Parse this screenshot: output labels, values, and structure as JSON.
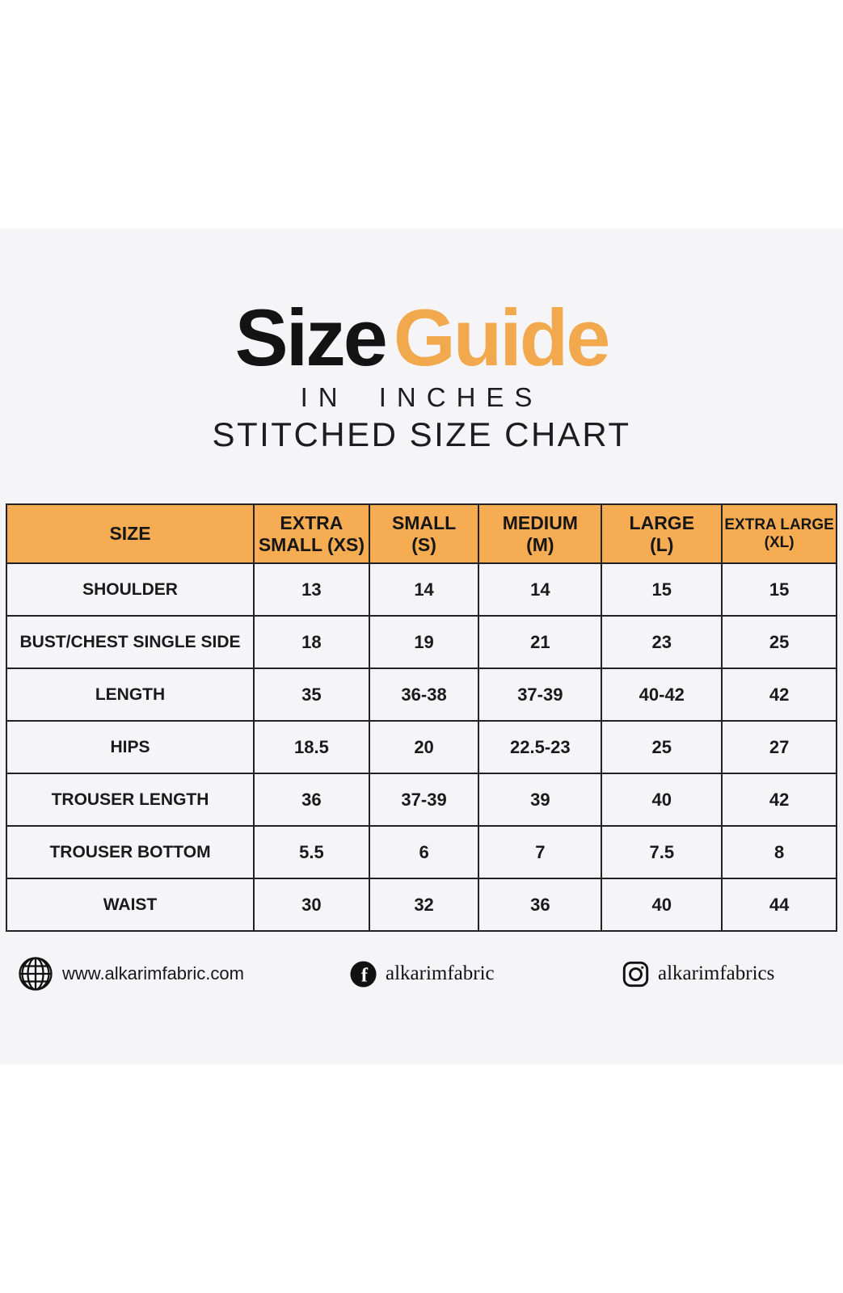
{
  "title": {
    "black": "Size",
    "orange": "Guide"
  },
  "subtitles": {
    "line1": "IN INCHES",
    "line2": "STITCHED SIZE CHART"
  },
  "colors": {
    "accent_orange": "#F2A94E",
    "table_header_bg": "#F6AC52",
    "panel_bg": "#F5F5F7",
    "border": "#222222",
    "text": "#141414"
  },
  "chart_data": {
    "type": "table",
    "title": "Size Guide",
    "subtitle": "In Inches — Stitched Size Chart",
    "columns": [
      "SIZE",
      "EXTRA SMALL (XS)",
      "SMALL (S)",
      "MEDIUM (M)",
      "LARGE (L)",
      "EXTRA LARGE (XL)"
    ],
    "columns_display": [
      "SIZE",
      "EXTRA\nSMALL (XS)",
      "SMALL\n(S)",
      "MEDIUM\n(M)",
      "LARGE\n(L)",
      "EXTRA LARGE\n(XL)"
    ],
    "rows": [
      {
        "label": "SHOULDER",
        "values": [
          "13",
          "14",
          "14",
          "15",
          "15"
        ]
      },
      {
        "label": "BUST/CHEST SINGLE SIDE",
        "values": [
          "18",
          "19",
          "21",
          "23",
          "25"
        ]
      },
      {
        "label": "LENGTH",
        "values": [
          "35",
          "36-38",
          "37-39",
          "40-42",
          "42"
        ]
      },
      {
        "label": "HIPS",
        "values": [
          "18.5",
          "20",
          "22.5-23",
          "25",
          "27"
        ]
      },
      {
        "label": "TROUSER LENGTH",
        "values": [
          "36",
          "37-39",
          "39",
          "40",
          "42"
        ]
      },
      {
        "label": "TROUSER BOTTOM",
        "values": [
          "5.5",
          "6",
          "7",
          "7.5",
          "8"
        ]
      },
      {
        "label": "WAIST",
        "values": [
          "30",
          "32",
          "36",
          "40",
          "44"
        ]
      }
    ]
  },
  "footer": {
    "website": {
      "icon": "globe-icon",
      "text": "www.alkarimfabric.com"
    },
    "facebook": {
      "icon": "facebook-icon",
      "text": "alkarimfabric"
    },
    "instagram": {
      "icon": "instagram-icon",
      "text": "alkarimfabrics"
    }
  }
}
